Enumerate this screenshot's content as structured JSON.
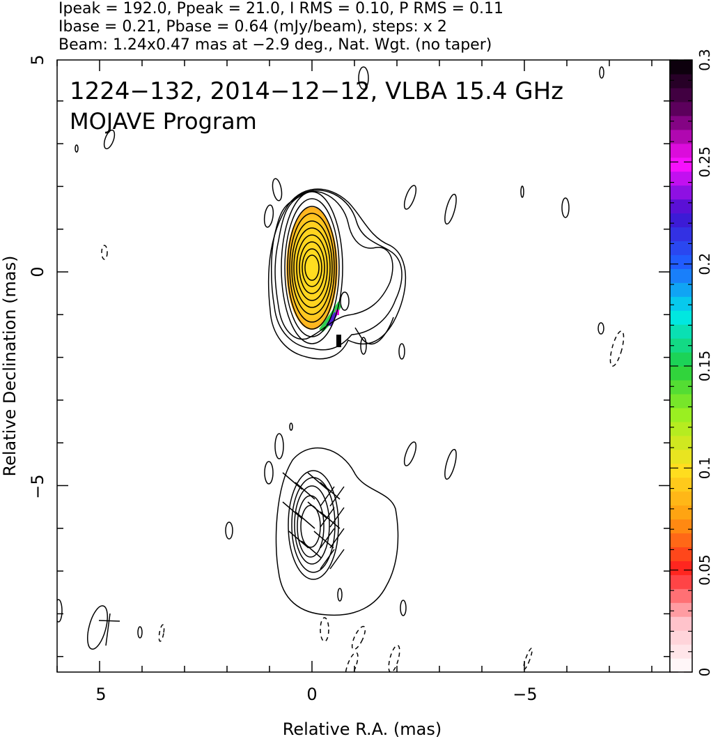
{
  "header": {
    "line1": "Ipeak = 192.0, Ppeak = 21.0, I RMS = 0.10, P RMS = 0.11",
    "line2": "Ibase = 0.21, Pbase = 0.64 (mJy/beam), steps: x 2",
    "line3": "Beam: 1.24x0.47 mas at −2.9 deg., Nat. Wgt. (no taper)"
  },
  "plot_title": {
    "line1": "1224−132, 2014−12−12, VLBA 15.4 GHz",
    "line2": "MOJAVE Program"
  },
  "axes": {
    "xlabel": "Relative R.A. (mas)",
    "ylabel": "Relative Declination (mas)"
  },
  "colorbar": {
    "ticks": [
      "0",
      "0.05",
      "0.1",
      "0.15",
      "0.2",
      "0.25",
      "0.3"
    ],
    "range": [
      0,
      0.3
    ],
    "stops": [
      "#ffffff",
      "#ffc0c8",
      "#ff2020",
      "#ff9a10",
      "#ffe020",
      "#a0f020",
      "#20d040",
      "#00e8e8",
      "#2060ff",
      "#4010d0",
      "#ff10ff",
      "#600060",
      "#000000"
    ]
  },
  "chart_data": {
    "type": "contour",
    "title": "1224−132, 2014−12−12, VLBA 15.4 GHz",
    "subtitle": "MOJAVE Program",
    "xlabel": "Relative R.A. (mas)",
    "ylabel": "Relative Declination (mas)",
    "xlim": [
      6,
      -9
    ],
    "ylim": [
      -9.3,
      5
    ],
    "xticks": [
      "5",
      "0",
      "−5"
    ],
    "xtick_values": [
      5,
      0,
      -5
    ],
    "yticks": [
      "5",
      "0",
      "−5"
    ],
    "ytick_values": [
      5,
      0,
      -5
    ],
    "ipeak_mjy_per_beam": 192.0,
    "ppeak_mjy_per_beam": 21.0,
    "i_rms": 0.1,
    "p_rms": 0.11,
    "ibase": 0.21,
    "pbase": 0.64,
    "contour_step_factor": 2,
    "beam": {
      "major_mas": 1.24,
      "minor_mas": 0.47,
      "pa_deg": -2.9
    },
    "weighting": "Nat. Wgt. (no taper)",
    "core_position_mas": [
      0,
      0
    ],
    "core_contour_levels": 10,
    "colorbar_label_range": [
      0,
      0.3
    ]
  }
}
